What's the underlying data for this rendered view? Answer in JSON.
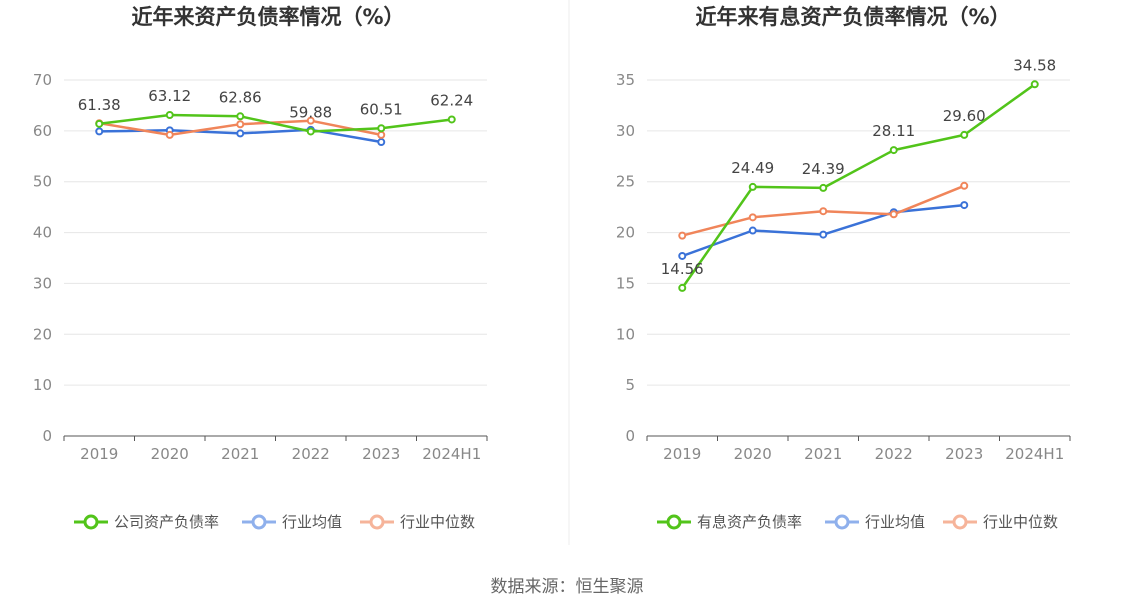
{
  "colors": {
    "company": "#52c41a",
    "industry_avg": "#3a72d8",
    "industry_median": "#f0855a",
    "legend_avg": "#8fb0ec",
    "legend_median": "#f6b49a"
  },
  "source": "数据来源：恒生聚源",
  "chart_data": [
    {
      "type": "line",
      "title": "近年来资产负债率情况（%）",
      "categories": [
        "2019",
        "2020",
        "2021",
        "2022",
        "2023",
        "2024H1"
      ],
      "ylim": [
        0,
        70
      ],
      "yticks": [
        "0",
        "10",
        "20",
        "30",
        "40",
        "50",
        "60",
        "70"
      ],
      "series": [
        {
          "name": "公司资产负债率",
          "values": [
            61.38,
            63.12,
            62.86,
            59.88,
            60.51,
            62.24
          ],
          "labels": [
            "61.38",
            "63.12",
            "62.86",
            "59.88",
            "60.51",
            "62.24"
          ]
        },
        {
          "name": "行业均值",
          "values": [
            59.9,
            60.1,
            59.5,
            60.2,
            57.8,
            null
          ]
        },
        {
          "name": "行业中位数",
          "values": [
            61.5,
            59.2,
            61.3,
            62.0,
            59.2,
            null
          ]
        }
      ]
    },
    {
      "type": "line",
      "title": "近年来有息资产负债率情况（%）",
      "categories": [
        "2019",
        "2020",
        "2021",
        "2022",
        "2023",
        "2024H1"
      ],
      "ylim": [
        0,
        35
      ],
      "yticks": [
        "0",
        "5",
        "10",
        "15",
        "20",
        "25",
        "30",
        "35"
      ],
      "series": [
        {
          "name": "有息资产负债率",
          "values": [
            14.56,
            24.49,
            24.39,
            28.11,
            29.6,
            34.58
          ],
          "labels": [
            "14.56",
            "24.49",
            "24.39",
            "28.11",
            "29.60",
            "34.58"
          ]
        },
        {
          "name": "行业均值",
          "values": [
            17.7,
            20.2,
            19.8,
            22.0,
            22.7,
            null
          ]
        },
        {
          "name": "行业中位数",
          "values": [
            19.7,
            21.5,
            22.1,
            21.8,
            24.6,
            null
          ]
        }
      ]
    }
  ]
}
